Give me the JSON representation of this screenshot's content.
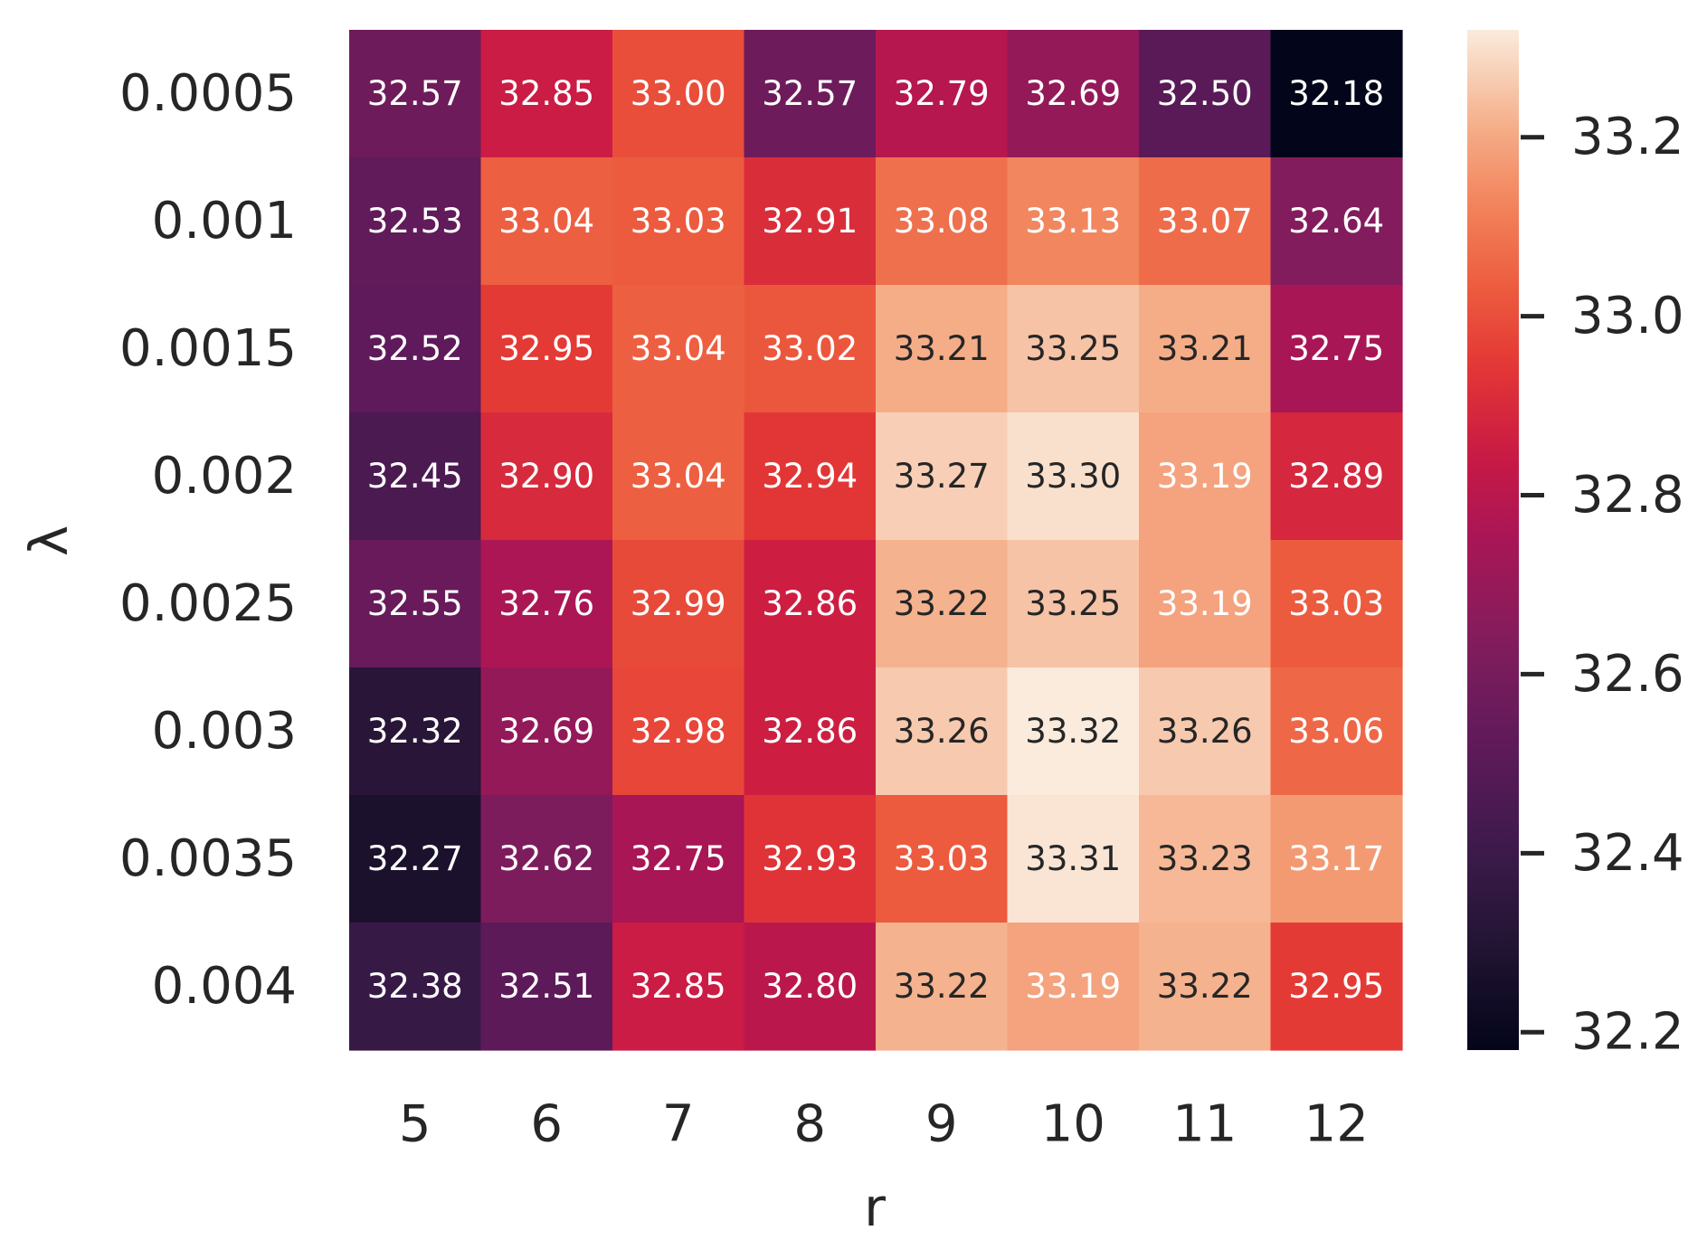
{
  "chart_data": {
    "type": "heatmap",
    "title": "",
    "xlabel": "r",
    "ylabel": "λ",
    "x_categories": [
      "5",
      "6",
      "7",
      "8",
      "9",
      "10",
      "11",
      "12"
    ],
    "y_categories": [
      "0.0005",
      "0.001",
      "0.0015",
      "0.002",
      "0.0025",
      "0.003",
      "0.0035",
      "0.004"
    ],
    "values": [
      [
        32.57,
        32.85,
        33.0,
        32.57,
        32.79,
        32.69,
        32.5,
        32.18
      ],
      [
        32.53,
        33.04,
        33.03,
        32.91,
        33.08,
        33.13,
        33.07,
        32.64
      ],
      [
        32.52,
        32.95,
        33.04,
        33.02,
        33.21,
        33.25,
        33.21,
        32.75
      ],
      [
        32.45,
        32.9,
        33.04,
        32.94,
        33.27,
        33.3,
        33.19,
        32.89
      ],
      [
        32.55,
        32.76,
        32.99,
        32.86,
        33.22,
        33.25,
        33.19,
        33.03
      ],
      [
        32.32,
        32.69,
        32.98,
        32.86,
        33.26,
        33.32,
        33.26,
        33.06
      ],
      [
        32.27,
        32.62,
        32.75,
        32.93,
        33.03,
        33.31,
        33.23,
        33.17
      ],
      [
        32.38,
        32.51,
        32.85,
        32.8,
        33.22,
        33.19,
        33.22,
        32.95
      ]
    ],
    "value_format_decimals": 2,
    "colormap": "rocket",
    "color_range": [
      32.18,
      33.32
    ],
    "colorbar": {
      "ticks": [
        32.2,
        32.4,
        32.6,
        32.8,
        33.0,
        33.2
      ],
      "tick_labels": [
        "32.2",
        "32.4",
        "32.6",
        "32.8",
        "33.0",
        "33.2"
      ]
    },
    "annotation_colors": {
      "light_text": "#ffffff",
      "dark_text": "#262626"
    }
  }
}
